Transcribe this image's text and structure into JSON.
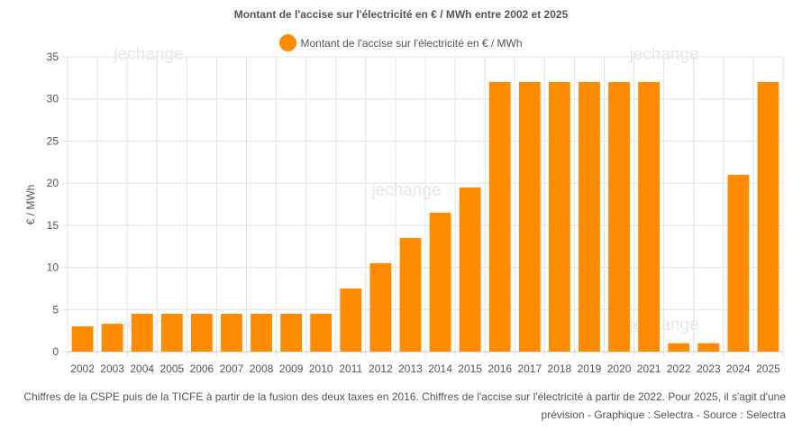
{
  "chart_data": {
    "type": "bar",
    "title": "Montant de l'accise sur l'électricité en € / MWh entre 2002 et 2025",
    "ylabel": "€ / MWh",
    "xlabel": "",
    "ylim": [
      0,
      35
    ],
    "yticks": [
      0,
      5,
      10,
      15,
      20,
      25,
      30,
      35
    ],
    "grid": true,
    "legend_position": "top-center",
    "categories": [
      "2002",
      "2003",
      "2004",
      "2005",
      "2006",
      "2007",
      "2008",
      "2009",
      "2010",
      "2011",
      "2012",
      "2013",
      "2014",
      "2015",
      "2016",
      "2017",
      "2018",
      "2019",
      "2020",
      "2021",
      "2022",
      "2023",
      "2024",
      "2025"
    ],
    "series": [
      {
        "name": "Montant de l'accise sur l'électricité en € / MWh",
        "color": "#ff8c00",
        "values": [
          3.0,
          3.3,
          4.5,
          4.5,
          4.5,
          4.5,
          4.5,
          4.5,
          4.5,
          7.5,
          10.5,
          13.5,
          16.5,
          19.5,
          32,
          32,
          32,
          32,
          32,
          32,
          1,
          1,
          21,
          32
        ]
      }
    ]
  },
  "footnote": "Chiffres de la CSPE puis de la TICFE à partir de la fusion des deux taxes en 2016. Chiffres de l'accise sur l'électricité à partir de 2022. Pour 2025, il s'agit d'une prévision - Graphique : Selectra - Source : Selectra",
  "watermark": "jechange"
}
